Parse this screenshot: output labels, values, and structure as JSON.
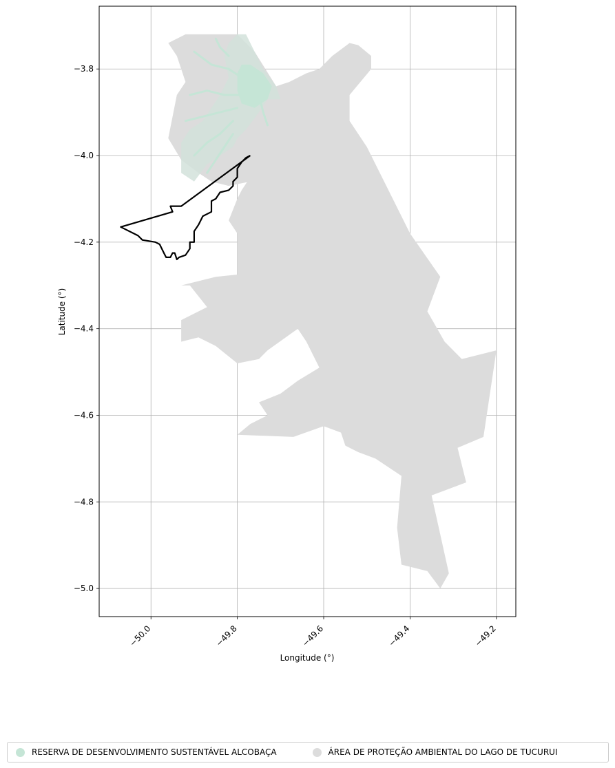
{
  "chart_data": {
    "type": "map",
    "xlabel": "Longitude (°)",
    "ylabel": "Latitude (°)",
    "xlim": [
      -50.12,
      -49.155
    ],
    "ylim": [
      -5.065,
      -3.655
    ],
    "xticks": [
      "−50.0",
      "−49.8",
      "−49.6",
      "−49.4",
      "−49.2"
    ],
    "xtick_values": [
      -50.0,
      -49.8,
      -49.6,
      -49.4,
      -49.2
    ],
    "yticks": [
      "−3.8",
      "−4.0",
      "−4.2",
      "−4.4",
      "−4.6",
      "−4.8",
      "−5.0"
    ],
    "ytick_values": [
      -3.8,
      -4.0,
      -4.2,
      -4.4,
      -4.6,
      -4.8,
      -5.0
    ],
    "grid": true,
    "legend_position": "bottom",
    "series": [
      {
        "name": "RESERVA DE DESENVOLVIMENTO SUSTENTÁVEL ALCOBAÇA",
        "color": "#c5e5d6",
        "kind": "area"
      },
      {
        "name": "ÁREA DE PROTEÇÃO AMBIENTAL DO LAGO DE TUCURUI",
        "color": "#dcdcdc",
        "kind": "area"
      }
    ],
    "apa_polygon": [
      [
        -49.92,
        -3.72
      ],
      [
        -49.8,
        -3.72
      ],
      [
        -49.76,
        -3.76
      ],
      [
        -49.71,
        -3.84
      ],
      [
        -49.68,
        -3.83
      ],
      [
        -49.64,
        -3.81
      ],
      [
        -49.61,
        -3.8
      ],
      [
        -49.58,
        -3.77
      ],
      [
        -49.54,
        -3.74
      ],
      [
        -49.52,
        -3.745
      ],
      [
        -49.49,
        -3.77
      ],
      [
        -49.49,
        -3.8
      ],
      [
        -49.54,
        -3.86
      ],
      [
        -49.54,
        -3.92
      ],
      [
        -49.5,
        -3.98
      ],
      [
        -49.45,
        -4.08
      ],
      [
        -49.4,
        -4.18
      ],
      [
        -49.33,
        -4.28
      ],
      [
        -49.36,
        -4.36
      ],
      [
        -49.32,
        -4.43
      ],
      [
        -49.28,
        -4.47
      ],
      [
        -49.2,
        -4.45
      ],
      [
        -49.2,
        -4.45
      ],
      [
        -49.23,
        -4.65
      ],
      [
        -49.29,
        -4.675
      ],
      [
        -49.27,
        -4.755
      ],
      [
        -49.35,
        -4.785
      ],
      [
        -49.31,
        -4.965
      ],
      [
        -49.33,
        -5.0
      ],
      [
        -49.36,
        -4.96
      ],
      [
        -49.42,
        -4.945
      ],
      [
        -49.43,
        -4.86
      ],
      [
        -49.42,
        -4.74
      ],
      [
        -49.48,
        -4.7
      ],
      [
        -49.52,
        -4.685
      ],
      [
        -49.55,
        -4.67
      ],
      [
        -49.56,
        -4.64
      ],
      [
        -49.6,
        -4.625
      ],
      [
        -49.67,
        -4.65
      ],
      [
        -49.8,
        -4.645
      ],
      [
        -49.77,
        -4.62
      ],
      [
        -49.73,
        -4.6
      ],
      [
        -49.75,
        -4.57
      ],
      [
        -49.7,
        -4.55
      ],
      [
        -49.66,
        -4.52
      ],
      [
        -49.61,
        -4.49
      ],
      [
        -49.64,
        -4.43
      ],
      [
        -49.66,
        -4.4
      ],
      [
        -49.73,
        -4.45
      ],
      [
        -49.75,
        -4.47
      ],
      [
        -49.8,
        -4.48
      ],
      [
        -49.85,
        -4.44
      ],
      [
        -49.89,
        -4.42
      ],
      [
        -49.89,
        -4.42
      ],
      [
        -49.93,
        -4.43
      ],
      [
        -49.93,
        -4.38
      ],
      [
        -49.93,
        -4.38
      ],
      [
        -49.87,
        -4.35
      ],
      [
        -49.91,
        -4.3
      ],
      [
        -49.93,
        -4.3
      ],
      [
        -49.85,
        -4.28
      ],
      [
        -49.8,
        -4.275
      ],
      [
        -49.8,
        -4.22
      ],
      [
        -49.8,
        -4.18
      ],
      [
        -49.82,
        -4.15
      ],
      [
        -49.8,
        -4.1
      ],
      [
        -49.79,
        -4.08
      ],
      [
        -49.77,
        -4.05
      ],
      [
        -49.75,
        -4.03
      ],
      [
        -49.72,
        -4.06
      ],
      [
        -49.77,
        -4.06
      ],
      [
        -49.82,
        -4.07
      ],
      [
        -49.86,
        -4.06
      ],
      [
        -49.89,
        -4.04
      ],
      [
        -49.93,
        -4.01
      ],
      [
        -49.96,
        -3.96
      ],
      [
        -49.95,
        -3.91
      ],
      [
        -49.94,
        -3.86
      ],
      [
        -49.92,
        -3.83
      ],
      [
        -49.94,
        -3.77
      ],
      [
        -49.96,
        -3.74
      ]
    ],
    "res_polygon": [
      [
        -49.8,
        -3.72
      ],
      [
        -49.78,
        -3.72
      ],
      [
        -49.76,
        -3.76
      ],
      [
        -49.74,
        -3.8
      ],
      [
        -49.71,
        -3.84
      ],
      [
        -49.7,
        -3.87
      ],
      [
        -49.73,
        -3.87
      ],
      [
        -49.75,
        -3.9
      ],
      [
        -49.78,
        -3.94
      ],
      [
        -49.8,
        -3.96
      ],
      [
        -49.81,
        -3.98
      ],
      [
        -49.84,
        -4.0
      ],
      [
        -49.87,
        -4.02
      ],
      [
        -49.9,
        -4.06
      ],
      [
        -49.93,
        -4.04
      ],
      [
        -49.93,
        -3.97
      ],
      [
        -49.91,
        -3.94
      ],
      [
        -49.88,
        -3.92
      ],
      [
        -49.86,
        -3.89
      ],
      [
        -49.84,
        -3.86
      ],
      [
        -49.82,
        -3.82
      ],
      [
        -49.83,
        -3.77
      ],
      [
        -49.82,
        -3.74
      ]
    ],
    "res_lake": [
      [
        -49.79,
        -3.79
      ],
      [
        -49.77,
        -3.79
      ],
      [
        -49.74,
        -3.81
      ],
      [
        -49.72,
        -3.84
      ],
      [
        -49.73,
        -3.87
      ],
      [
        -49.76,
        -3.89
      ],
      [
        -49.79,
        -3.88
      ],
      [
        -49.8,
        -3.85
      ],
      [
        -49.8,
        -3.81
      ]
    ],
    "outline": [
      [
        -49.77,
        -4.0
      ],
      [
        -49.78,
        -4.005
      ],
      [
        -49.79,
        -4.015
      ],
      [
        -49.8,
        -4.03
      ],
      [
        -49.8,
        -4.05
      ],
      [
        -49.81,
        -4.06
      ],
      [
        -49.81,
        -4.07
      ],
      [
        -49.82,
        -4.08
      ],
      [
        -49.84,
        -4.085
      ],
      [
        -49.85,
        -4.1
      ],
      [
        -49.86,
        -4.105
      ],
      [
        -49.86,
        -4.13
      ],
      [
        -49.88,
        -4.14
      ],
      [
        -49.89,
        -4.16
      ],
      [
        -49.9,
        -4.175
      ],
      [
        -49.9,
        -4.2
      ],
      [
        -49.91,
        -4.2
      ],
      [
        -49.91,
        -4.215
      ],
      [
        -49.92,
        -4.23
      ],
      [
        -49.935,
        -4.235
      ],
      [
        -49.94,
        -4.24
      ],
      [
        -49.945,
        -4.225
      ],
      [
        -49.95,
        -4.225
      ],
      [
        -49.955,
        -4.235
      ],
      [
        -49.965,
        -4.235
      ],
      [
        -49.97,
        -4.225
      ],
      [
        -49.98,
        -4.205
      ],
      [
        -49.99,
        -4.2
      ],
      [
        -50.02,
        -4.195
      ],
      [
        -50.03,
        -4.185
      ],
      [
        -50.07,
        -4.165
      ],
      [
        -49.95,
        -4.13
      ],
      [
        -49.955,
        -4.117
      ],
      [
        -49.93,
        -4.117
      ],
      [
        -49.77,
        -4.0
      ]
    ]
  }
}
